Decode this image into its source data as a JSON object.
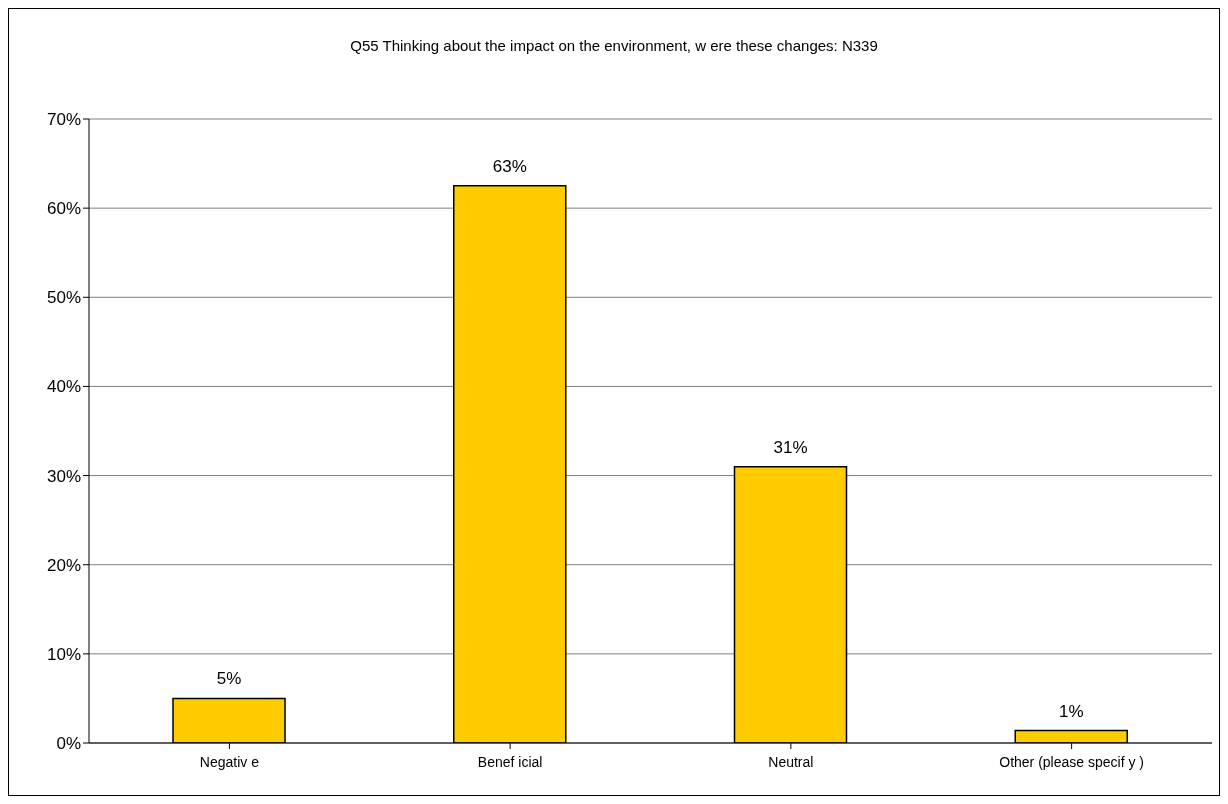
{
  "chart_data": {
    "type": "bar",
    "title": "Q55 Thinking about the impact on the environment, w ere these changes: N339",
    "categories": [
      "Negativ e",
      "Benef icial",
      "Neutral",
      "Other (please specif y )"
    ],
    "values": [
      5,
      62.5,
      31,
      1.4
    ],
    "value_labels": [
      "5%",
      "63%",
      "31%",
      "1%"
    ],
    "color": "#ffcc00",
    "ylim": [
      0,
      70
    ],
    "yticks": [
      {
        "value": 0,
        "label": "0%"
      },
      {
        "value": 10,
        "label": "10%"
      },
      {
        "value": 20,
        "label": "20%"
      },
      {
        "value": 30,
        "label": "30%"
      },
      {
        "value": 40,
        "label": "40%"
      },
      {
        "value": 50,
        "label": "50%"
      },
      {
        "value": 60,
        "label": "60%"
      },
      {
        "value": 70,
        "label": "70%"
      }
    ],
    "grid": "y",
    "legend": false
  }
}
